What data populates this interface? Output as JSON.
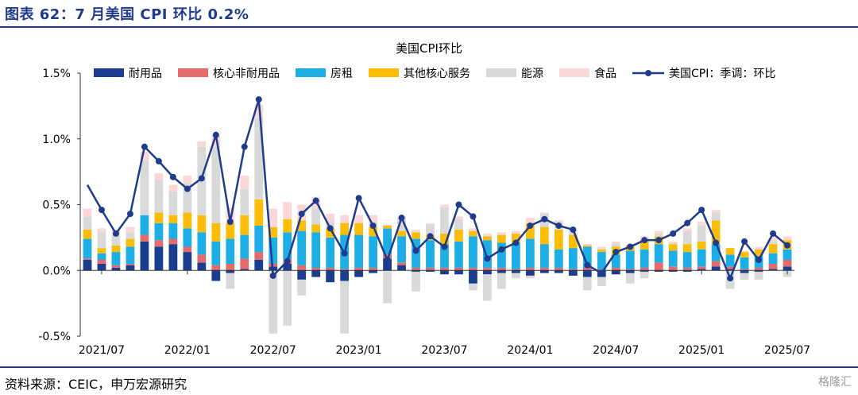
{
  "figure_label": "图表 62：7 月美国 CPI 环比 0.2%",
  "source_note": "资料来源：CEIC，申万宏源研究",
  "watermark": "格隆汇",
  "chart_data": {
    "type": "bar",
    "stacked": true,
    "title": "美国CPI环比",
    "xlabel": "",
    "ylabel": "",
    "ylim": [
      -0.5,
      1.5
    ],
    "yticks": [
      "1.5%",
      "1.0%",
      "0.5%",
      "0.0%",
      "-0.5%"
    ],
    "ytick_values": [
      1.5,
      1.0,
      0.5,
      0.0,
      -0.5
    ],
    "xtick_labels": [
      "2021/07",
      "2022/01",
      "2022/07",
      "2023/01",
      "2023/07",
      "2024/01",
      "2024/07",
      "2025/01",
      "2025/07"
    ],
    "xtick_index": [
      1,
      7,
      13,
      19,
      25,
      31,
      37,
      43,
      49
    ],
    "legend_position": "top",
    "grid": false,
    "categories": [
      "2021/06",
      "2021/07",
      "2021/08",
      "2021/09",
      "2021/10",
      "2021/11",
      "2021/12",
      "2022/01",
      "2022/02",
      "2022/03",
      "2022/04",
      "2022/05",
      "2022/06",
      "2022/07",
      "2022/08",
      "2022/09",
      "2022/10",
      "2022/11",
      "2022/12",
      "2023/01",
      "2023/02",
      "2023/03",
      "2023/04",
      "2023/05",
      "2023/06",
      "2023/07",
      "2023/08",
      "2023/09",
      "2023/10",
      "2023/11",
      "2023/12",
      "2024/01",
      "2024/02",
      "2024/03",
      "2024/04",
      "2024/05",
      "2024/06",
      "2024/07",
      "2024/08",
      "2024/09",
      "2024/10",
      "2024/11",
      "2024/12",
      "2025/01",
      "2025/02",
      "2025/03",
      "2025/04",
      "2025/05",
      "2025/06",
      "2025/07"
    ],
    "series": [
      {
        "name": "耐用品",
        "color": "#1a3d8f",
        "values": [
          0.08,
          0.05,
          0.02,
          0.04,
          0.22,
          0.18,
          0.2,
          0.14,
          0.06,
          -0.08,
          -0.02,
          0.01,
          0.08,
          0.03,
          0.05,
          -0.07,
          -0.05,
          -0.09,
          -0.08,
          -0.05,
          -0.02,
          0.09,
          0.04,
          -0.01,
          -0.01,
          -0.03,
          -0.03,
          -0.1,
          -0.03,
          -0.02,
          -0.02,
          -0.04,
          -0.02,
          -0.02,
          -0.04,
          -0.05,
          -0.05,
          -0.03,
          -0.02,
          -0.01,
          -0.01,
          -0.01,
          -0.01,
          0.01,
          0.03,
          0.01,
          -0.02,
          -0.01,
          0.01,
          0.03
        ]
      },
      {
        "name": "核心非耐用品",
        "color": "#e46b6b",
        "values": [
          0.01,
          0.03,
          0.02,
          0.01,
          0.05,
          0.05,
          0.04,
          0.04,
          0.06,
          0.04,
          0.05,
          0.08,
          0.06,
          0.02,
          0.03,
          0.04,
          0.02,
          0.02,
          0.01,
          0.02,
          0.02,
          0.03,
          0.02,
          0.02,
          0.02,
          0.02,
          0.02,
          0.02,
          0.02,
          0.02,
          0.01,
          0.02,
          0.02,
          0.02,
          0.01,
          0.02,
          0.01,
          0.02,
          0.01,
          0.02,
          0.06,
          0.03,
          0.02,
          0.02,
          0.04,
          0.02,
          0.01,
          0.02,
          0.04,
          0.05
        ]
      },
      {
        "name": "房租",
        "color": "#1daee6",
        "values": [
          0.15,
          0.05,
          0.1,
          0.13,
          0.15,
          0.13,
          0.12,
          0.14,
          0.17,
          0.18,
          0.19,
          0.18,
          0.2,
          0.2,
          0.21,
          0.26,
          0.27,
          0.23,
          0.26,
          0.25,
          0.24,
          0.2,
          0.2,
          0.22,
          0.21,
          0.18,
          0.2,
          0.24,
          0.21,
          0.19,
          0.2,
          0.22,
          0.18,
          0.14,
          0.16,
          0.16,
          0.13,
          0.1,
          0.14,
          0.14,
          0.14,
          0.12,
          0.12,
          0.13,
          0.13,
          0.09,
          0.09,
          0.09,
          0.08,
          0.08
        ]
      },
      {
        "name": "其他核心服务",
        "color": "#fbbd08",
        "values": [
          0.07,
          0.04,
          0.05,
          0.06,
          0.0,
          0.08,
          0.06,
          0.12,
          0.13,
          0.14,
          0.12,
          0.15,
          0.2,
          0.08,
          0.1,
          0.08,
          0.06,
          0.07,
          0.09,
          0.09,
          0.07,
          0.02,
          0.04,
          0.05,
          0.04,
          0.08,
          0.09,
          0.04,
          0.03,
          0.06,
          0.07,
          0.12,
          0.13,
          0.15,
          0.1,
          0.01,
          0.02,
          0.06,
          0.04,
          0.07,
          0.06,
          0.05,
          0.06,
          0.06,
          0.18,
          0.05,
          0.04,
          0.05,
          0.07,
          0.07
        ]
      },
      {
        "name": "能源",
        "color": "#d9d9d9",
        "values": [
          0.1,
          0.12,
          0.08,
          0.05,
          0.42,
          0.25,
          0.18,
          0.22,
          0.52,
          0.58,
          -0.12,
          0.2,
          0.62,
          -0.48,
          -0.42,
          -0.12,
          0.12,
          0.05,
          -0.4,
          0.0,
          0.04,
          -0.25,
          0.1,
          -0.15,
          0.08,
          0.2,
          0.08,
          -0.05,
          -0.2,
          -0.12,
          -0.04,
          -0.02,
          0.1,
          0.06,
          0.02,
          -0.1,
          -0.07,
          0.02,
          -0.08,
          -0.05,
          0.02,
          0.01,
          0.1,
          0.12,
          0.06,
          -0.14,
          -0.05,
          -0.06,
          0.02,
          -0.05
        ]
      },
      {
        "name": "食品",
        "color": "#fbd7d8",
        "values": [
          0.06,
          0.03,
          0.04,
          0.04,
          0.06,
          0.05,
          0.05,
          0.06,
          0.04,
          0.09,
          0.12,
          0.1,
          0.1,
          0.14,
          0.13,
          0.12,
          0.09,
          0.06,
          0.06,
          0.06,
          0.05,
          0.01,
          0.01,
          0.02,
          0.01,
          0.02,
          0.02,
          0.02,
          0.02,
          0.02,
          0.02,
          0.04,
          0.01,
          0.01,
          0.02,
          0.01,
          0.02,
          0.02,
          0.01,
          0.03,
          0.02,
          0.01,
          0.02,
          0.03,
          0.02,
          0.0,
          0.01,
          0.02,
          0.03,
          0.03
        ]
      }
    ],
    "line": {
      "name": "美国CPI：季调：环比",
      "color": "#1f3b8c",
      "values": [
        0.65,
        0.46,
        0.28,
        0.43,
        0.94,
        0.83,
        0.71,
        0.62,
        0.7,
        1.03,
        0.37,
        0.94,
        1.3,
        -0.04,
        0.07,
        0.43,
        0.53,
        0.32,
        0.13,
        0.55,
        0.34,
        0.08,
        0.4,
        0.15,
        0.26,
        0.18,
        0.5,
        0.41,
        0.09,
        0.16,
        0.21,
        0.34,
        0.39,
        0.34,
        0.31,
        0.04,
        -0.02,
        0.14,
        0.18,
        0.23,
        0.23,
        0.28,
        0.36,
        0.46,
        0.21,
        -0.06,
        0.22,
        0.08,
        0.28,
        0.19
      ]
    }
  }
}
